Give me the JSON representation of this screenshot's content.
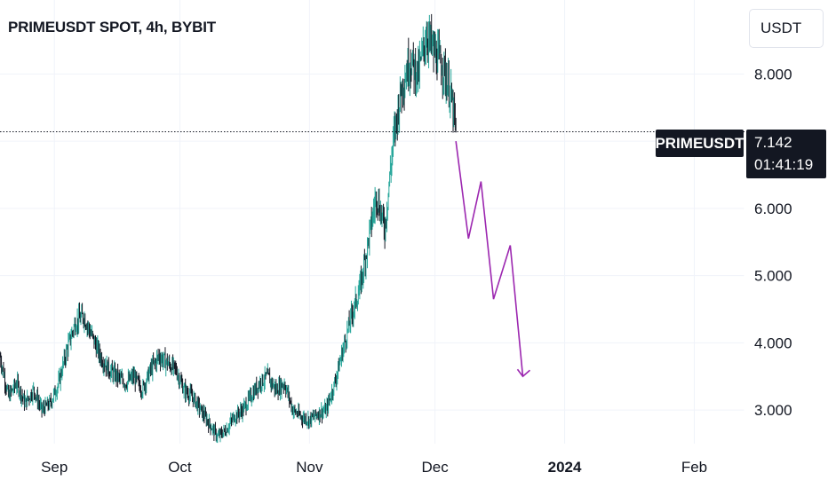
{
  "header": {
    "title": "PRIMEUSDT SPOT, 4h, BYBIT"
  },
  "currency_button": {
    "label": "USDT"
  },
  "last_price": {
    "symbol": "PRIMEUSDT",
    "value": "7.142",
    "countdown": "01:41:19"
  },
  "colors": {
    "up": "#26a69a",
    "down": "#131722",
    "projection": "#9c27b0",
    "grid": "#f0f3fa",
    "axis_text": "#131722"
  },
  "chart_data": {
    "type": "line",
    "title": "PRIMEUSDT SPOT, 4h, BYBIT",
    "xlabel": "",
    "ylabel": "",
    "ylim": [
      2.5,
      9.1
    ],
    "xlim": [
      "2023-08-19",
      "2024-02-13"
    ],
    "x_ticks": [
      {
        "date": "2023-09-01",
        "label": "Sep"
      },
      {
        "date": "2023-10-01",
        "label": "Oct"
      },
      {
        "date": "2023-11-01",
        "label": "Nov"
      },
      {
        "date": "2023-12-01",
        "label": "Dec"
      },
      {
        "date": "2024-01-01",
        "label": "2024"
      },
      {
        "date": "2024-02-01",
        "label": "Feb"
      }
    ],
    "y_ticks": [
      3,
      4,
      5,
      6,
      7,
      8
    ],
    "y_tick_labels": [
      "3.000",
      "4.000",
      "5.000",
      "6.000",
      "7.000",
      "8.000"
    ],
    "grid": true,
    "series": [
      {
        "type": "price",
        "x": [
          "2023-08-19",
          "2023-08-21",
          "2023-08-23",
          "2023-08-25",
          "2023-08-27",
          "2023-08-29",
          "2023-08-31",
          "2023-09-02",
          "2023-09-04",
          "2023-09-06",
          "2023-09-08",
          "2023-09-10",
          "2023-09-12",
          "2023-09-14",
          "2023-09-16",
          "2023-09-18",
          "2023-09-20",
          "2023-09-22",
          "2023-09-24",
          "2023-09-26",
          "2023-09-28",
          "2023-09-30",
          "2023-10-02",
          "2023-10-04",
          "2023-10-06",
          "2023-10-08",
          "2023-10-10",
          "2023-10-12",
          "2023-10-14",
          "2023-10-16",
          "2023-10-18",
          "2023-10-20",
          "2023-10-22",
          "2023-10-24",
          "2023-10-26",
          "2023-10-28",
          "2023-10-30",
          "2023-11-01",
          "2023-11-03",
          "2023-11-05",
          "2023-11-07",
          "2023-11-09",
          "2023-11-11",
          "2023-11-13",
          "2023-11-15",
          "2023-11-17",
          "2023-11-19",
          "2023-11-21",
          "2023-11-23",
          "2023-11-25",
          "2023-11-27",
          "2023-11-29",
          "2023-12-01",
          "2023-12-03",
          "2023-12-05",
          "2023-12-06"
        ],
        "values": [
          3.8,
          3.2,
          3.4,
          3.1,
          3.3,
          3.0,
          3.1,
          3.4,
          3.9,
          4.3,
          4.4,
          4.1,
          3.8,
          3.6,
          3.5,
          3.4,
          3.5,
          3.3,
          3.6,
          3.8,
          3.7,
          3.6,
          3.3,
          3.2,
          3.0,
          2.8,
          2.6,
          2.7,
          2.9,
          3.0,
          3.2,
          3.4,
          3.5,
          3.3,
          3.4,
          3.0,
          2.9,
          2.85,
          2.95,
          3.0,
          3.4,
          3.9,
          4.4,
          4.8,
          5.5,
          6.2,
          5.7,
          7.0,
          7.8,
          8.2,
          8.0,
          8.6,
          8.3,
          8.1,
          7.6,
          7.14
        ]
      },
      {
        "type": "projection",
        "x": [
          "2023-12-06",
          "2023-12-09",
          "2023-12-12",
          "2023-12-15",
          "2023-12-19",
          "2023-12-22",
          "2023-12-27"
        ],
        "values": [
          7.0,
          5.55,
          6.4,
          4.65,
          5.45,
          3.5,
          3.5
        ]
      }
    ]
  }
}
